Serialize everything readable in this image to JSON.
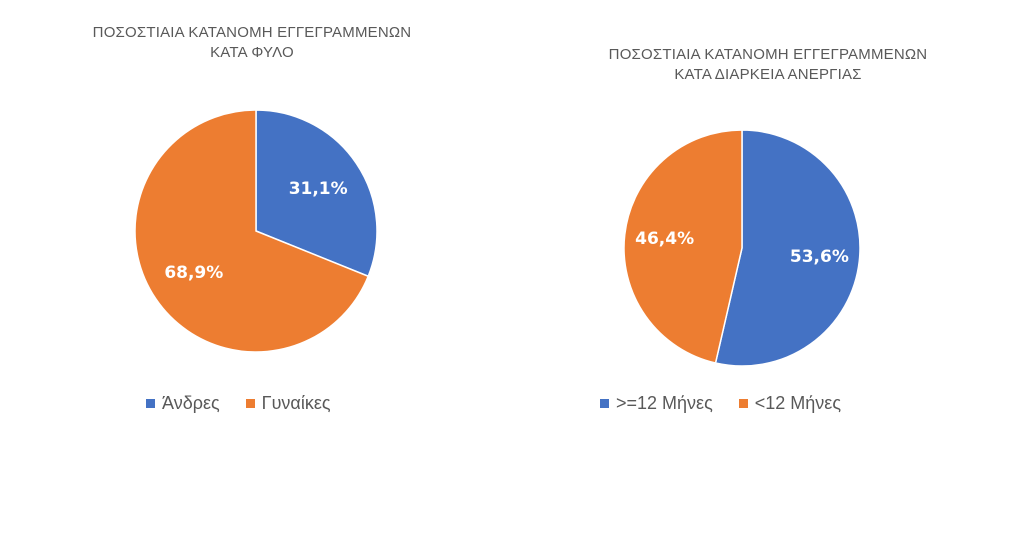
{
  "chart_data": [
    {
      "type": "pie",
      "title_lines": [
        "ΠΟΣΟΣΤΙΑΙΑ ΚΑΤΑΝΟΜΗ ΕΓΓΕΓΡΑΜΜΕΝΩΝ",
        "ΚΑΤΑ ΦΥΛΟ"
      ],
      "slices": [
        {
          "label": "Άνδρες",
          "value": 31.1,
          "display": "31,1%",
          "color": "#4472C4"
        },
        {
          "label": "Γυναίκες",
          "value": 68.9,
          "display": "68,9%",
          "color": "#ED7D31"
        }
      ],
      "legend": [
        "Άνδρες",
        "Γυναίκες"
      ],
      "legend_position": "bottom"
    },
    {
      "type": "pie",
      "title_lines": [
        "ΠΟΣΟΣΤΙΑΙΑ ΚΑΤΑΝΟΜΗ ΕΓΓΕΓΡΑΜΜΕΝΩΝ",
        "ΚΑΤΑ ΔΙΑΡΚΕΙΑ ΑΝΕΡΓΙΑΣ"
      ],
      "slices": [
        {
          "label": ">=12 Μήνες",
          "value": 53.6,
          "display": "53,6%",
          "color": "#4472C4"
        },
        {
          "label": "<12 Μήνες",
          "value": 46.4,
          "display": "46,4%",
          "color": "#ED7D31"
        }
      ],
      "legend": [
        ">=12 Μήνες",
        "<12 Μήνες"
      ],
      "legend_position": "bottom"
    }
  ]
}
